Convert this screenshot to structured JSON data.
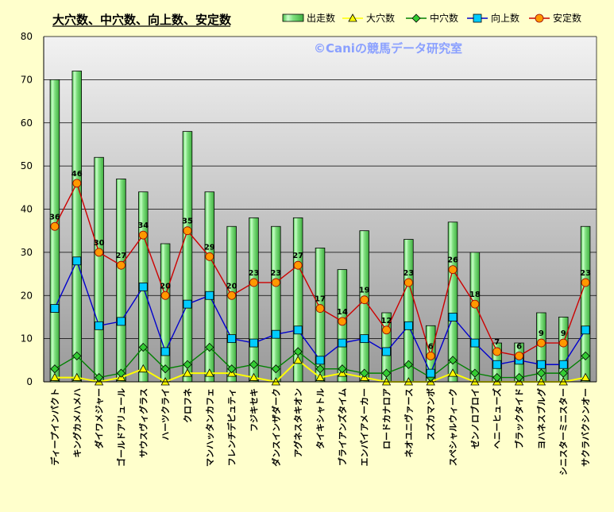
{
  "chart_data": {
    "type": "bar",
    "title": "大穴数、中穴数、向上数、安定数",
    "watermark": "©Caniの競馬データ研究室",
    "ylim": [
      0,
      80
    ],
    "yticks": [
      0,
      10,
      20,
      30,
      40,
      50,
      60,
      70,
      80
    ],
    "categories": [
      "ディープインパクト",
      "キングカメハメハ",
      "ダイワメジャー",
      "ゴールドアリュール",
      "サウスヴィグラス",
      "ハーツクライ",
      "クロフネ",
      "マンハッタンカフェ",
      "フレンチデピュティ",
      "フジキセキ",
      "ダンスインザダーク",
      "アグネスタキオン",
      "タイキシャトル",
      "ブライアンズタイム",
      "エンパイアメーカー",
      "ロードカナロア",
      "ネオユニヴァース",
      "スズカマンボ",
      "スペシャルウィーク",
      "ゼンノロブロイ",
      "ヘニーヒューズ",
      "ブラックタイド",
      "ヨハネスブルグ",
      "シニスターミニスター",
      "サクラバクシンオー"
    ],
    "series": [
      {
        "name": "出走数",
        "kind": "bar",
        "color": "#66dd66",
        "values": [
          70,
          72,
          52,
          47,
          44,
          32,
          58,
          44,
          36,
          38,
          36,
          38,
          31,
          26,
          35,
          16,
          33,
          13,
          37,
          30,
          9,
          9,
          16,
          15,
          36
        ]
      },
      {
        "name": "大穴数",
        "kind": "line",
        "marker": "triangle",
        "color": "#ffff00",
        "values": [
          1,
          1,
          0,
          1,
          3,
          0,
          2,
          2,
          2,
          1,
          0,
          5,
          1,
          2,
          1,
          0,
          0,
          0,
          2,
          0,
          0,
          0,
          0,
          0,
          1
        ]
      },
      {
        "name": "中穴数",
        "kind": "line",
        "marker": "diamond",
        "color": "#008000",
        "values": [
          3,
          6,
          1,
          2,
          8,
          3,
          4,
          8,
          3,
          4,
          3,
          7,
          3,
          3,
          2,
          2,
          4,
          1,
          5,
          2,
          1,
          1,
          2,
          2,
          6
        ]
      },
      {
        "name": "向上数",
        "kind": "line",
        "marker": "square",
        "color": "#0000cc",
        "values": [
          17,
          28,
          13,
          14,
          22,
          7,
          18,
          20,
          10,
          9,
          11,
          12,
          5,
          9,
          10,
          7,
          13,
          2,
          15,
          9,
          4,
          5,
          4,
          4,
          12
        ]
      },
      {
        "name": "安定数",
        "kind": "line",
        "marker": "circle",
        "color": "#cc0000",
        "values": [
          36,
          46,
          30,
          27,
          34,
          20,
          35,
          29,
          20,
          23,
          23,
          27,
          17,
          14,
          19,
          12,
          23,
          6,
          26,
          18,
          7,
          6,
          9,
          9,
          23
        ]
      }
    ],
    "legend_position": "top-right",
    "grid": true
  }
}
